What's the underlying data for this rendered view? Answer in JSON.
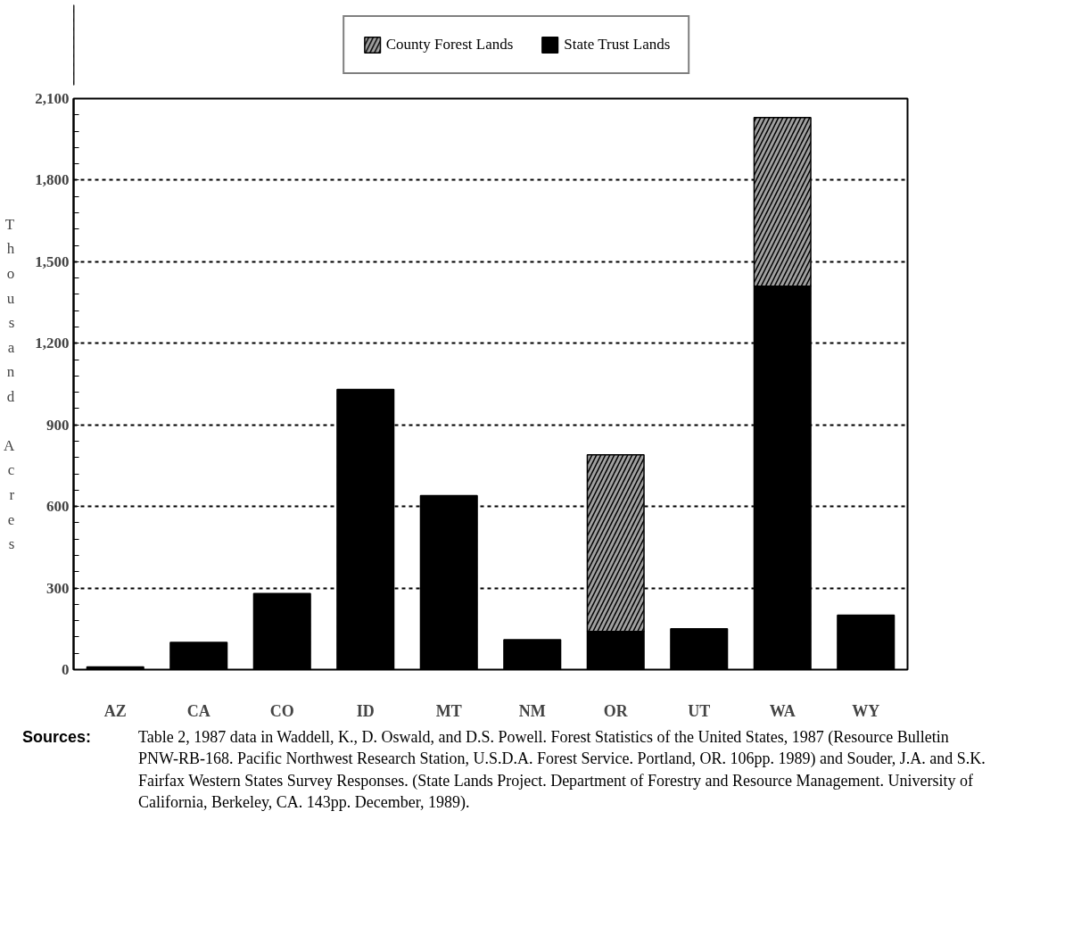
{
  "chart_data": {
    "type": "bar",
    "stacked": true,
    "categories": [
      "AZ",
      "CA",
      "CO",
      "ID",
      "MT",
      "NM",
      "OR",
      "UT",
      "WA",
      "WY"
    ],
    "series": [
      {
        "name": "State Trust Lands",
        "color": "#000000",
        "values": [
          10,
          100,
          280,
          1030,
          640,
          110,
          140,
          150,
          1410,
          200
        ]
      },
      {
        "name": "County Forest Lands",
        "color": "#a0a0a0",
        "values": [
          null,
          null,
          null,
          null,
          null,
          null,
          650,
          null,
          620,
          null
        ]
      }
    ],
    "ylabel": "Thousand Acres",
    "ylim": [
      0,
      2100
    ],
    "yticks": [
      {
        "value": 0,
        "label": "0"
      },
      {
        "value": 60,
        "label": null
      },
      {
        "value": 120,
        "label": null
      },
      {
        "value": 180,
        "label": null
      },
      {
        "value": 240,
        "label": null
      },
      {
        "value": 300,
        "label": "300"
      },
      {
        "value": 360,
        "label": null
      },
      {
        "value": 420,
        "label": null
      },
      {
        "value": 480,
        "label": null
      },
      {
        "value": 540,
        "label": null
      },
      {
        "value": 600,
        "label": "600"
      },
      {
        "value": 660,
        "label": null
      },
      {
        "value": 720,
        "label": null
      },
      {
        "value": 780,
        "label": null
      },
      {
        "value": 840,
        "label": null
      },
      {
        "value": 900,
        "label": "900"
      },
      {
        "value": 960,
        "label": null
      },
      {
        "value": 1020,
        "label": null
      },
      {
        "value": 1080,
        "label": null
      },
      {
        "value": 1140,
        "label": null
      },
      {
        "value": 1200,
        "label": "1,200"
      },
      {
        "value": 1260,
        "label": null
      },
      {
        "value": 1320,
        "label": null
      },
      {
        "value": 1380,
        "label": null
      },
      {
        "value": 1440,
        "label": null
      },
      {
        "value": 1500,
        "label": "1,500"
      },
      {
        "value": 1560,
        "label": null
      },
      {
        "value": 1620,
        "label": null
      },
      {
        "value": 1680,
        "label": null
      },
      {
        "value": 1740,
        "label": null
      },
      {
        "value": 1800,
        "label": "1,800"
      },
      {
        "value": 1860,
        "label": null
      },
      {
        "value": 1920,
        "label": null
      },
      {
        "value": 1980,
        "label": null
      },
      {
        "value": 2040,
        "label": null
      },
      {
        "value": 2100,
        "label": "2,100"
      }
    ],
    "grid": "y",
    "legend": "top",
    "annotations": [
      "Sources:",
      "Table 2, 1987 data in Waddell, K., D. Oswald, and D.S. Powell. Forest Statistics of the United States, 1987 (Resource Bulletin PNW-RB-168. Pacific Northwest Research Station, U.S.D.A. Forest Service. Portland, OR. 106pp. 1989) and Souder, J.A. and S.K. Fairfax Western States Survey Responses. (State Lands Project. Department of Forestry and Resource Management. University of California, Berkeley, CA. 143pp. December, 1989)."
    ]
  }
}
